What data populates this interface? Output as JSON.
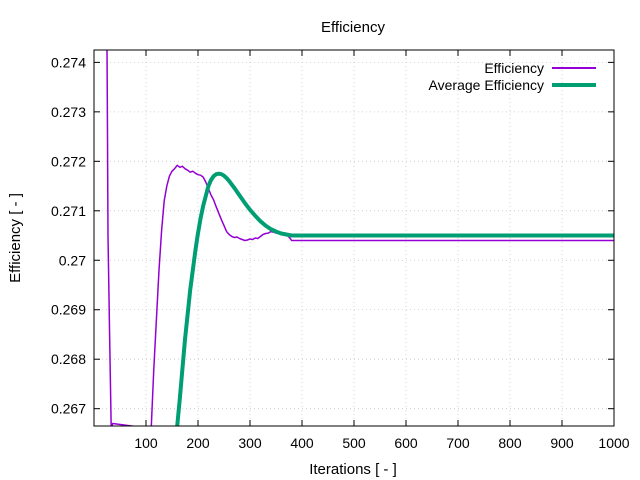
{
  "chart_data": {
    "type": "line",
    "title": "Efficiency",
    "xlabel": "Iterations [ - ]",
    "ylabel": "Efficiency [ - ]",
    "xlim": [
      0,
      1000
    ],
    "ylim": [
      0.26665,
      0.27425
    ],
    "xticks": [
      100,
      200,
      300,
      400,
      500,
      600,
      700,
      800,
      900,
      1000
    ],
    "xtick_labels": [
      "100",
      "200",
      "300",
      "400",
      "500",
      "600",
      "700",
      "800",
      "900",
      "1000"
    ],
    "yticks": [
      0.267,
      0.268,
      0.269,
      0.27,
      0.271,
      0.272,
      0.273,
      0.274
    ],
    "ytick_labels": [
      "0.267",
      "0.268",
      "0.269",
      "0.27",
      "0.271",
      "0.272",
      "0.273",
      "0.274"
    ],
    "grid": true,
    "legend_position": "top-right",
    "series": [
      {
        "name": "Efficiency",
        "color": "#9400d3",
        "x": [
          25,
          26,
          27,
          30,
          33,
          36,
          110,
          115,
          120,
          125,
          130,
          135,
          140,
          145,
          150,
          155,
          160,
          165,
          170,
          175,
          180,
          185,
          190,
          195,
          200,
          205,
          210,
          215,
          220,
          225,
          230,
          235,
          240,
          245,
          250,
          255,
          260,
          265,
          270,
          275,
          280,
          285,
          290,
          295,
          300,
          305,
          310,
          315,
          320,
          325,
          330,
          335,
          340,
          345,
          350,
          355,
          360,
          365,
          370,
          375,
          378,
          380,
          400,
          500,
          600,
          700,
          800,
          900,
          1000
        ],
        "y": [
          0.2743,
          0.2725,
          0.2705,
          0.2685,
          0.2666,
          0.2667,
          0.2666,
          0.2678,
          0.2688,
          0.2698,
          0.2706,
          0.2712,
          0.2715,
          0.2717,
          0.2718,
          0.27185,
          0.27192,
          0.27188,
          0.2719,
          0.27185,
          0.27182,
          0.27178,
          0.2718,
          0.27176,
          0.27173,
          0.27172,
          0.27168,
          0.27158,
          0.27145,
          0.27132,
          0.27122,
          0.27108,
          0.27095,
          0.27082,
          0.2707,
          0.27058,
          0.27052,
          0.27048,
          0.27046,
          0.27047,
          0.27044,
          0.27042,
          0.2704,
          0.27041,
          0.27043,
          0.27042,
          0.27045,
          0.27044,
          0.27048,
          0.27052,
          0.27054,
          0.27055,
          0.27058,
          0.27057,
          0.27055,
          0.27056,
          0.27055,
          0.27054,
          0.27051,
          0.27047,
          0.27043,
          0.2704,
          0.2704,
          0.2704,
          0.2704,
          0.2704,
          0.2704,
          0.2704,
          0.2704
        ]
      },
      {
        "name": "Average Efficiency",
        "color": "#009e73",
        "x": [
          160,
          165,
          170,
          175,
          180,
          185,
          190,
          195,
          200,
          205,
          210,
          215,
          220,
          225,
          230,
          235,
          240,
          245,
          250,
          255,
          260,
          265,
          270,
          280,
          290,
          300,
          310,
          320,
          330,
          340,
          350,
          360,
          370,
          380,
          400,
          500,
          600,
          700,
          800,
          900,
          1000
        ],
        "y": [
          0.26665,
          0.2672,
          0.2678,
          0.2684,
          0.2689,
          0.2694,
          0.2698,
          0.2702,
          0.27055,
          0.27085,
          0.2711,
          0.2713,
          0.2715,
          0.27162,
          0.2717,
          0.27174,
          0.27175,
          0.27174,
          0.27171,
          0.27166,
          0.2716,
          0.27153,
          0.27146,
          0.27131,
          0.27116,
          0.27102,
          0.2709,
          0.27079,
          0.2707,
          0.27063,
          0.27058,
          0.27054,
          0.27052,
          0.2705,
          0.2705,
          0.2705,
          0.2705,
          0.2705,
          0.2705,
          0.2705,
          0.2705
        ]
      }
    ]
  }
}
